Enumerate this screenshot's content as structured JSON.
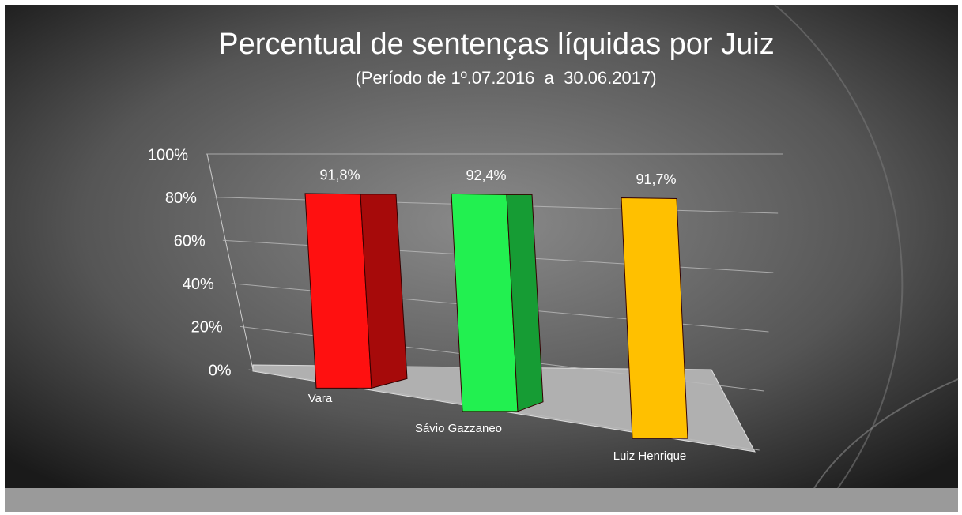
{
  "chart_data": {
    "type": "bar3d",
    "title": "Percentual de sentenças líquidas por Juiz",
    "subtitle": "(Período de 1º.07.2016  a  30.06.2017)",
    "categories": [
      "Vara",
      "Sávio Gazzaneo",
      "Luiz Henrique"
    ],
    "values": [
      91.8,
      92.4,
      91.7
    ],
    "value_labels": [
      "91,8%",
      "92,4%",
      "91,7%"
    ],
    "colors": [
      "#ff1010",
      "#22f050",
      "#ffc000"
    ],
    "ylim": [
      0,
      100
    ],
    "yticks": [
      {
        "value": 0,
        "label": "0%"
      },
      {
        "value": 20,
        "label": "20%"
      },
      {
        "value": 40,
        "label": "40%"
      },
      {
        "value": 60,
        "label": "60%"
      },
      {
        "value": 80,
        "label": "80%"
      },
      {
        "value": 100,
        "label": "100%"
      }
    ],
    "grid": true
  }
}
